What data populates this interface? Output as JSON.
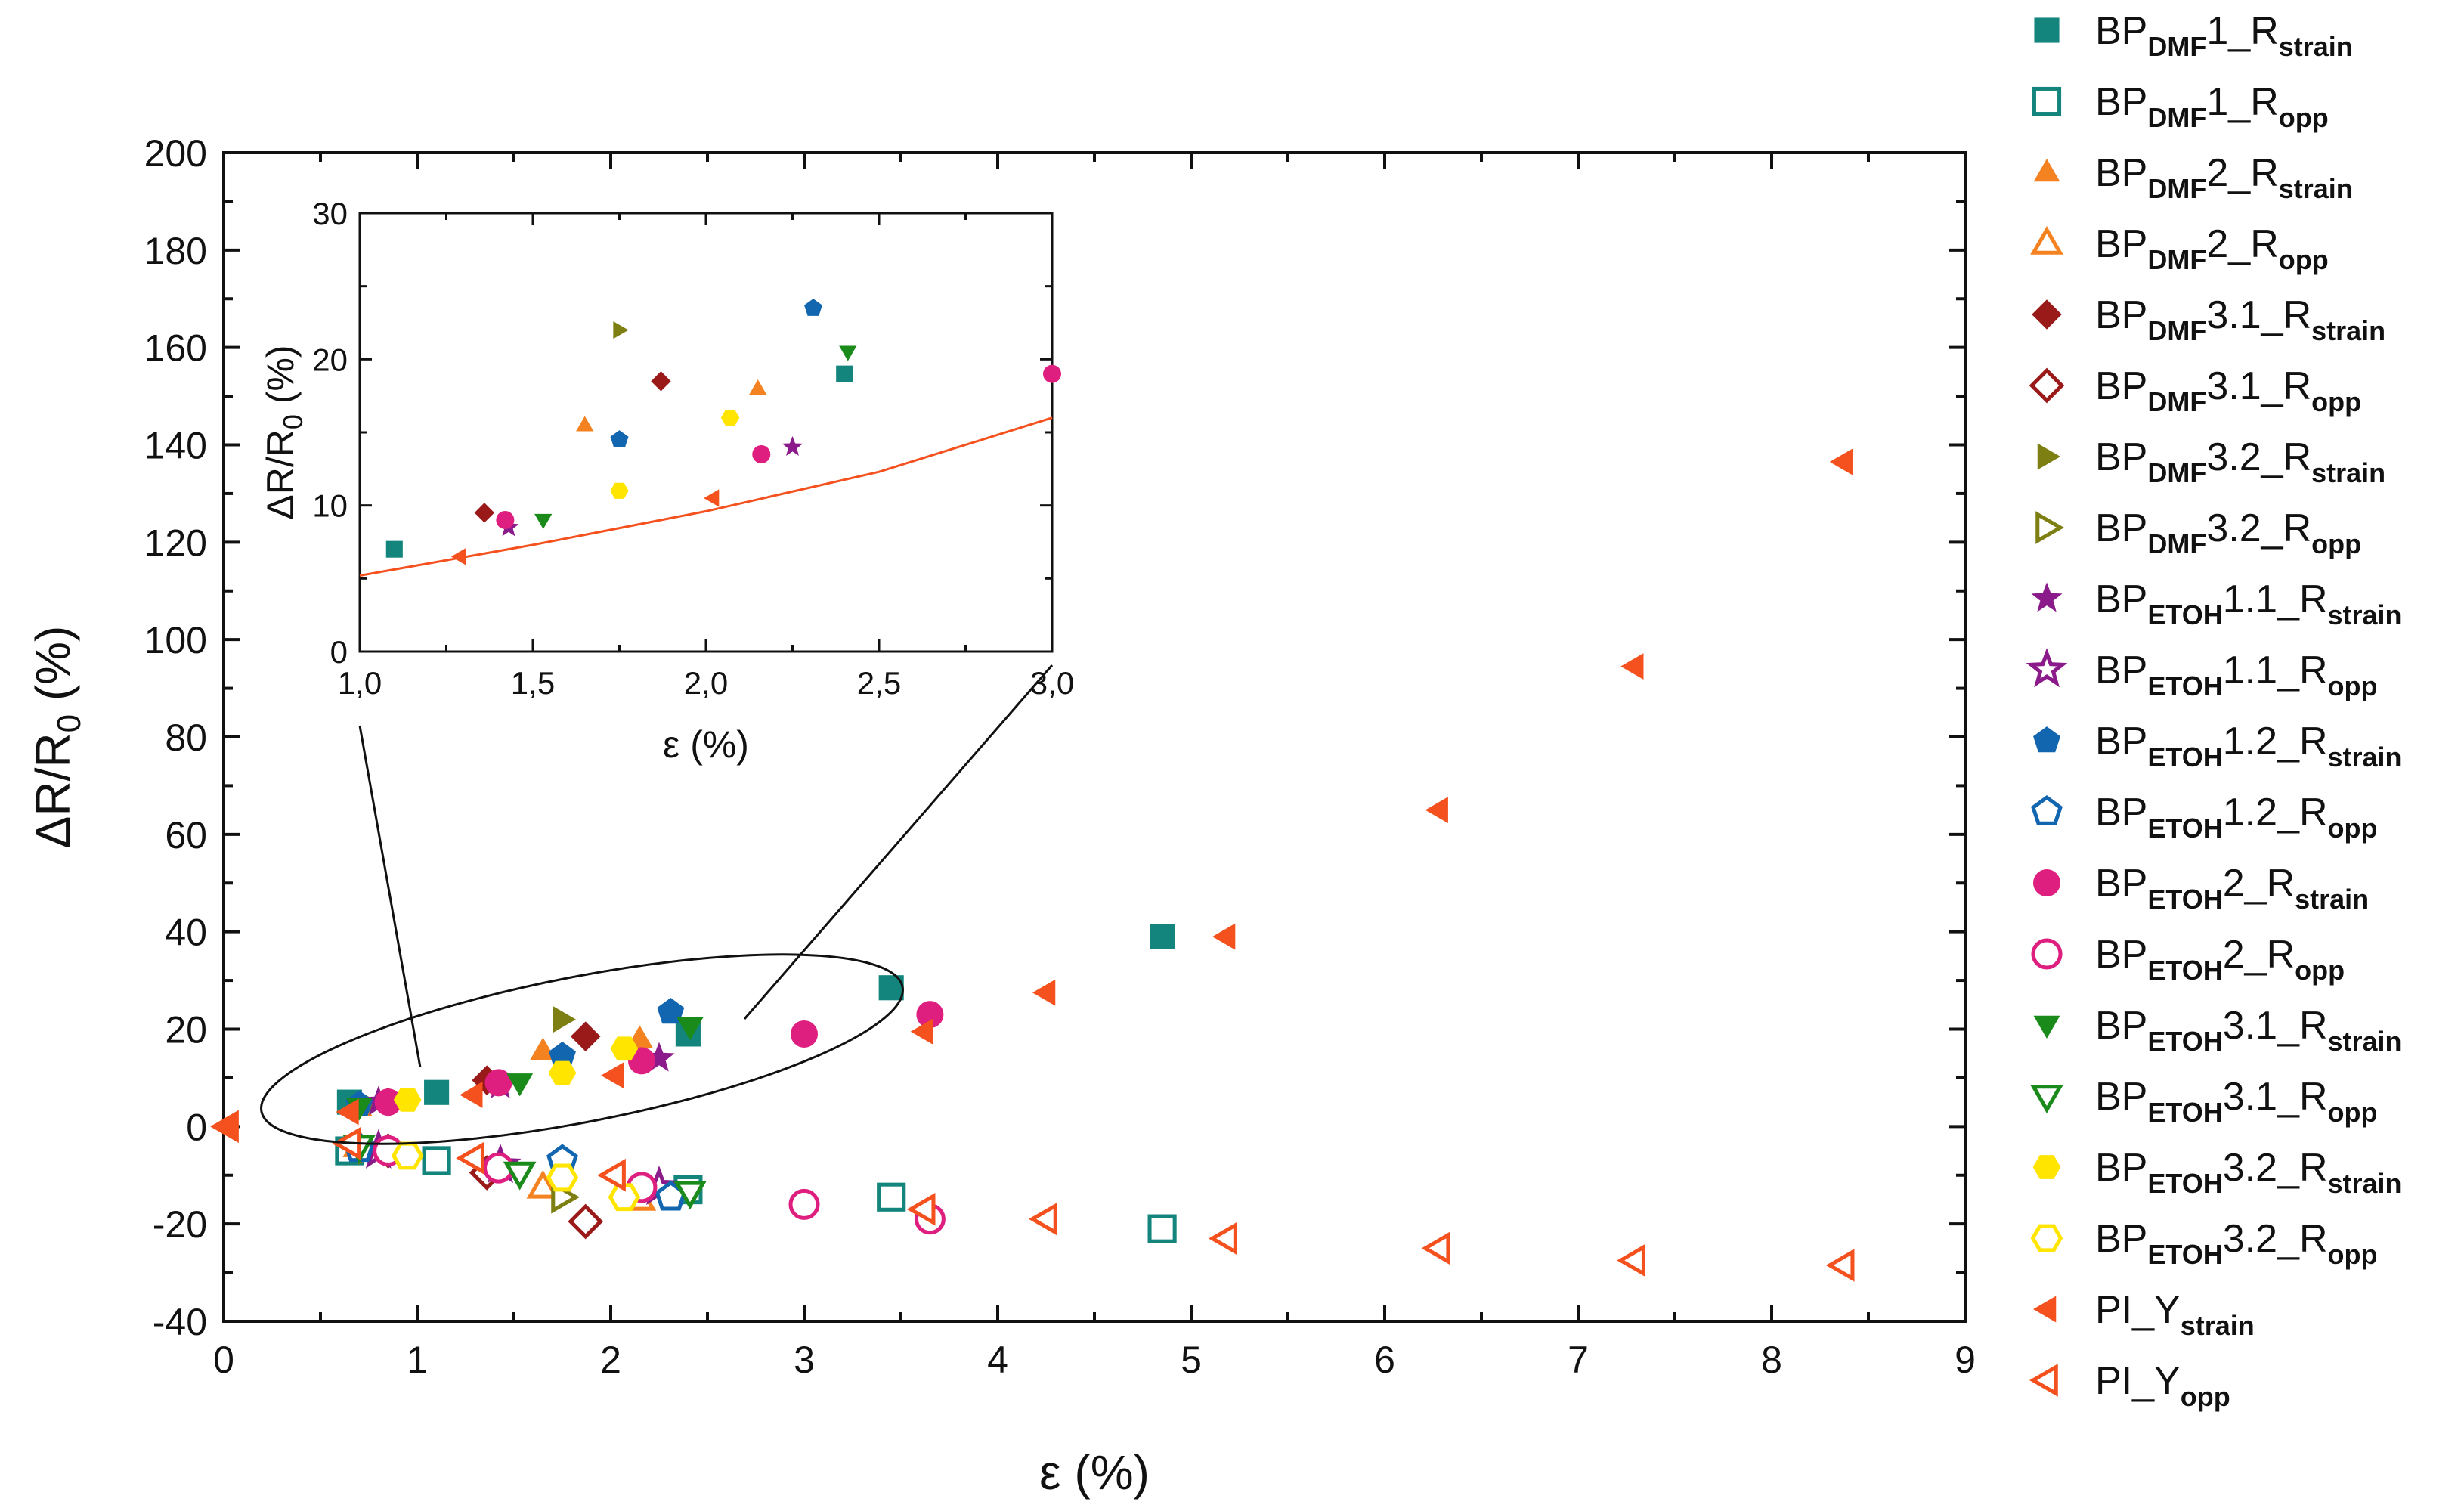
{
  "chart_data": {
    "type": "scatter",
    "main": {
      "xlabel": "ε (%)",
      "ylabel": "ΔR/R0 (%)",
      "ylabel_main": "ΔR/R",
      "ylabel_sub": "0",
      "ylabel_tail": " (%)",
      "xlim": [
        0,
        9
      ],
      "ylim": [
        -40,
        200
      ],
      "xticks": [
        "0",
        "1",
        "2",
        "3",
        "4",
        "5",
        "6",
        "7",
        "8",
        "9"
      ],
      "yticks": [
        "-40",
        "-20",
        "0",
        "20",
        "40",
        "60",
        "80",
        "100",
        "120",
        "140",
        "160",
        "180",
        "200"
      ]
    },
    "inset": {
      "xlabel": "ε (%)",
      "ylabel": "ΔR/R0 (%)",
      "ylabel_main": "ΔR/R",
      "ylabel_sub": "0",
      "ylabel_tail": " (%)",
      "xlim": [
        1.0,
        3.0
      ],
      "ylim": [
        0,
        30
      ],
      "xticks": [
        "1,0",
        "1,5",
        "2,0",
        "2,5",
        "3,0"
      ],
      "yticks": [
        "0",
        "10",
        "20",
        "30"
      ],
      "fit_line": [
        [
          1.0,
          5.2
        ],
        [
          1.5,
          7.3
        ],
        [
          2.0,
          9.6
        ],
        [
          2.5,
          12.3
        ],
        [
          3.0,
          16.0
        ]
      ]
    },
    "series": [
      {
        "name": "BP_DMF1_R_strain",
        "main": "BP",
        "sub": "DMF",
        "mid": "1_R",
        "sub2": "strain",
        "marker": "square",
        "filled": true,
        "color": "#14857d",
        "points": [
          [
            0.65,
            5
          ],
          [
            1.1,
            7
          ],
          [
            2.4,
            19
          ],
          [
            3.45,
            28.5
          ],
          [
            4.85,
            39
          ]
        ]
      },
      {
        "name": "BP_DMF1_R_opp",
        "main": "BP",
        "sub": "DMF",
        "mid": "1_R",
        "sub2": "opp",
        "marker": "square",
        "filled": false,
        "color": "#14857d",
        "points": [
          [
            0.65,
            -5
          ],
          [
            1.1,
            -7
          ],
          [
            2.4,
            -13
          ],
          [
            3.45,
            -14.5
          ],
          [
            4.85,
            -21
          ]
        ]
      },
      {
        "name": "BP_DMF2_R_strain",
        "main": "BP",
        "sub": "DMF",
        "mid": "2_R",
        "sub2": "strain",
        "marker": "triangle-up",
        "filled": true,
        "color": "#f58220",
        "points": [
          [
            0.7,
            4
          ],
          [
            1.65,
            15.5
          ],
          [
            2.15,
            18
          ]
        ]
      },
      {
        "name": "BP_DMF2_R_opp",
        "main": "BP",
        "sub": "DMF",
        "mid": "2_R",
        "sub2": "opp",
        "marker": "triangle-up",
        "filled": false,
        "color": "#f58220",
        "points": [
          [
            0.7,
            -4
          ],
          [
            1.65,
            -12.5
          ],
          [
            2.15,
            -15
          ]
        ]
      },
      {
        "name": "BP_DMF3.1_R_strain",
        "main": "BP",
        "sub": "DMF",
        "mid": "3.1_R",
        "sub2": "strain",
        "marker": "diamond",
        "filled": true,
        "color": "#9a1a1a",
        "points": [
          [
            0.85,
            5
          ],
          [
            1.36,
            9.5
          ],
          [
            1.87,
            18.5
          ]
        ]
      },
      {
        "name": "BP_DMF3.1_R_opp",
        "main": "BP",
        "sub": "DMF",
        "mid": "3.1_R",
        "sub2": "opp",
        "marker": "diamond",
        "filled": false,
        "color": "#9a1a1a",
        "points": [
          [
            0.85,
            -5
          ],
          [
            1.36,
            -9.5
          ],
          [
            1.87,
            -19.5
          ]
        ]
      },
      {
        "name": "BP_DMF3.2_R_strain",
        "main": "BP",
        "sub": "DMF",
        "mid": "3.2_R",
        "sub2": "strain",
        "marker": "triangle-right",
        "filled": true,
        "color": "#7e7f12",
        "points": [
          [
            0.75,
            4.5
          ],
          [
            1.75,
            22
          ]
        ]
      },
      {
        "name": "BP_DMF3.2_R_opp",
        "main": "BP",
        "sub": "DMF",
        "mid": "3.2_R",
        "sub2": "opp",
        "marker": "triangle-right",
        "filled": false,
        "color": "#7e7f12",
        "points": [
          [
            0.75,
            -4.5
          ],
          [
            1.75,
            -14.5
          ]
        ]
      },
      {
        "name": "BP_ETOH1.1_R_strain",
        "main": "BP",
        "sub": "ETOH",
        "mid": "1.1_R",
        "sub2": "strain",
        "marker": "star",
        "filled": true,
        "color": "#8b1a8b",
        "points": [
          [
            0.8,
            5
          ],
          [
            1.43,
            8.5
          ],
          [
            2.25,
            14
          ]
        ]
      },
      {
        "name": "BP_ETOH1.1_R_opp",
        "main": "BP",
        "sub": "ETOH",
        "mid": "1.1_R",
        "sub2": "opp",
        "marker": "star",
        "filled": false,
        "color": "#8b1a8b",
        "points": [
          [
            0.8,
            -5
          ],
          [
            1.43,
            -8
          ],
          [
            2.25,
            -12.5
          ]
        ]
      },
      {
        "name": "BP_ETOH1.2_R_strain",
        "main": "BP",
        "sub": "ETOH",
        "mid": "1.2_R",
        "sub2": "strain",
        "marker": "pentagon",
        "filled": true,
        "color": "#1266b0",
        "points": [
          [
            0.7,
            4.5
          ],
          [
            1.75,
            14.5
          ],
          [
            2.31,
            23.5
          ]
        ]
      },
      {
        "name": "BP_ETOH1.2_R_opp",
        "main": "BP",
        "sub": "ETOH",
        "mid": "1.2_R",
        "sub2": "opp",
        "marker": "pentagon",
        "filled": false,
        "color": "#1266b0",
        "points": [
          [
            0.7,
            -4.5
          ],
          [
            1.75,
            -7
          ],
          [
            2.31,
            -14.5
          ]
        ]
      },
      {
        "name": "BP_ETOH2_R_strain",
        "main": "BP",
        "sub": "ETOH",
        "mid": "2_R",
        "sub2": "strain",
        "marker": "circle",
        "filled": true,
        "color": "#de1f7f",
        "points": [
          [
            0.85,
            5
          ],
          [
            1.42,
            9
          ],
          [
            2.16,
            13.5
          ],
          [
            3.0,
            19
          ],
          [
            3.65,
            23
          ]
        ]
      },
      {
        "name": "BP_ETOH2_R_opp",
        "main": "BP",
        "sub": "ETOH",
        "mid": "2_R",
        "sub2": "opp",
        "marker": "circle",
        "filled": false,
        "color": "#de1f7f",
        "points": [
          [
            0.85,
            -5
          ],
          [
            1.42,
            -8.5
          ],
          [
            2.16,
            -12.5
          ],
          [
            3.0,
            -16
          ],
          [
            3.65,
            -19
          ]
        ]
      },
      {
        "name": "BP_ETOH3.1_R_strain",
        "main": "BP",
        "sub": "ETOH",
        "mid": "3.1_R",
        "sub2": "strain",
        "marker": "triangle-down",
        "filled": true,
        "color": "#1a8a1a",
        "points": [
          [
            0.7,
            4
          ],
          [
            1.53,
            9
          ],
          [
            2.41,
            20.5
          ]
        ]
      },
      {
        "name": "BP_ETOH3.1_R_opp",
        "main": "BP",
        "sub": "ETOH",
        "mid": "3.1_R",
        "sub2": "opp",
        "marker": "triangle-down",
        "filled": false,
        "color": "#1a8a1a",
        "points": [
          [
            0.7,
            -4
          ],
          [
            1.53,
            -9.5
          ],
          [
            2.41,
            -13.5
          ]
        ]
      },
      {
        "name": "BP_ETOH3.2_R_strain",
        "main": "BP",
        "sub": "ETOH",
        "mid": "3.2_R",
        "sub2": "strain",
        "marker": "hexagon",
        "filled": true,
        "color": "#ffe500",
        "points": [
          [
            0.95,
            5.5
          ],
          [
            1.75,
            11
          ],
          [
            2.07,
            16
          ]
        ]
      },
      {
        "name": "BP_ETOH3.2_R_opp",
        "main": "BP",
        "sub": "ETOH",
        "mid": "3.2_R",
        "sub2": "opp",
        "marker": "hexagon",
        "filled": false,
        "color": "#ffe500",
        "points": [
          [
            0.95,
            -6
          ],
          [
            1.75,
            -10.5
          ],
          [
            2.07,
            -14.5
          ]
        ]
      },
      {
        "name": "PI_Y_strain",
        "main": "PI_Y",
        "sub": "",
        "mid": "",
        "sub2": "strain",
        "marker": "triangle-left",
        "filled": true,
        "color": "#f4511e",
        "points": [
          [
            0.02,
            0
          ],
          [
            0.65,
            3
          ],
          [
            1.29,
            6.5
          ],
          [
            2.02,
            10.5
          ],
          [
            3.62,
            19.5
          ],
          [
            4.25,
            27.5
          ],
          [
            5.18,
            39
          ],
          [
            6.28,
            65
          ],
          [
            7.29,
            94.5
          ],
          [
            8.37,
            136.5
          ]
        ]
      },
      {
        "name": "PI_Y_opp",
        "main": "PI_Y",
        "sub": "",
        "mid": "",
        "sub2": "opp",
        "marker": "triangle-left",
        "filled": false,
        "color": "#f4511e",
        "points": [
          [
            0.02,
            0
          ],
          [
            0.65,
            -3.5
          ],
          [
            1.29,
            -6.5
          ],
          [
            2.02,
            -10
          ],
          [
            3.62,
            -17
          ],
          [
            4.25,
            -19
          ],
          [
            5.18,
            -23
          ],
          [
            6.28,
            -25
          ],
          [
            7.29,
            -27.5
          ],
          [
            8.37,
            -28.5
          ]
        ]
      }
    ]
  }
}
